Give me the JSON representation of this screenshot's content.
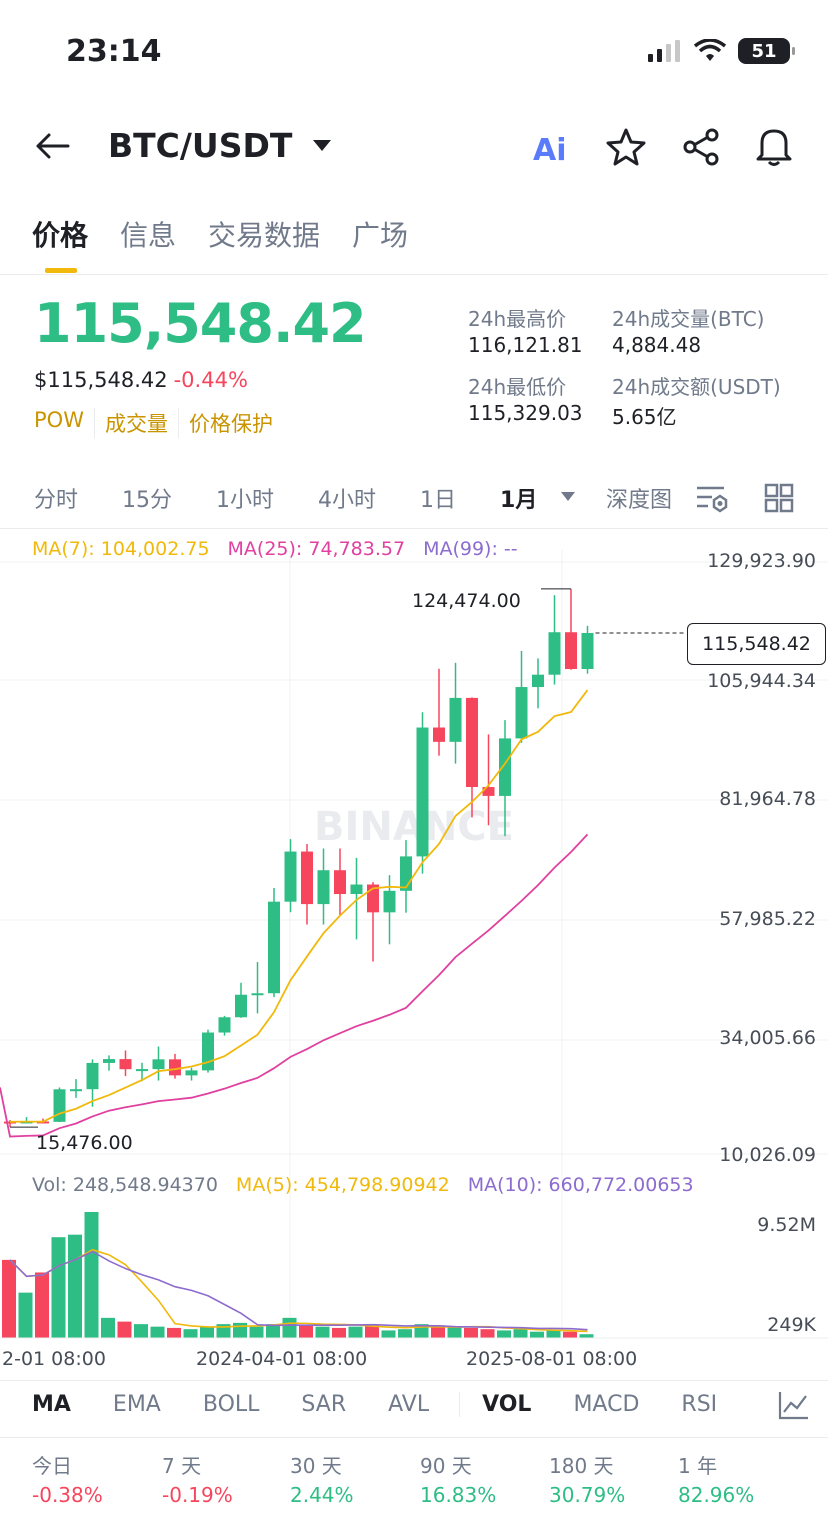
{
  "status": {
    "time": "23:14",
    "battery": "51"
  },
  "header": {
    "symbol": "BTC/USDT",
    "ai_label": "Ai"
  },
  "tabs": [
    "价格",
    "信息",
    "交易数据",
    "广场"
  ],
  "price": {
    "last": "115,548.42",
    "usd": "$115,548.42",
    "change": "-0.44%",
    "tags": [
      "POW",
      "成交量",
      "价格保护"
    ]
  },
  "stats": {
    "high_label": "24h最高价",
    "high": "116,121.81",
    "low_label": "24h最低价",
    "low": "115,329.03",
    "vol_btc_label": "24h成交量(BTC)",
    "vol_btc": "4,884.48",
    "vol_usdt_label": "24h成交额(USDT)",
    "vol_usdt": "5.65亿"
  },
  "intervals": [
    "分时",
    "15分",
    "1小时",
    "4小时",
    "1日",
    "1月",
    "深度图"
  ],
  "ma": {
    "ma7": "MA(7): 104,002.75",
    "ma25": "MA(25): 74,783.57",
    "ma99": "MA(99): --"
  },
  "y_axis": [
    "129,923.90",
    "105,944.34",
    "81,964.78",
    "57,985.22",
    "34,005.66",
    "10,026.09"
  ],
  "chart_labels": {
    "high": "124,474.00",
    "low": "15,476.00",
    "last": "115,548.42",
    "watermark": "BINANCE"
  },
  "volume": {
    "vol": "Vol: 248,548.94370",
    "ma5": "MA(5): 454,798.90942",
    "ma10": "MA(10): 660,772.00653",
    "y_top": "9.52M",
    "y_bottom": "249K"
  },
  "x_axis": [
    "2-01 08:00",
    "2024-04-01 08:00",
    "2025-08-01 08:00"
  ],
  "indicators": [
    "MA",
    "EMA",
    "BOLL",
    "SAR",
    "AVL",
    "VOL",
    "MACD",
    "RSI"
  ],
  "performance": [
    {
      "label": "今日",
      "value": "-0.38%"
    },
    {
      "label": "7 天",
      "value": "-0.19%"
    },
    {
      "label": "30 天",
      "value": "2.44%"
    },
    {
      "label": "90 天",
      "value": "16.83%"
    },
    {
      "label": "180 天",
      "value": "30.79%"
    },
    {
      "label": "1 年",
      "value": "82.96%"
    }
  ],
  "colors": {
    "up": "#2ebd85",
    "down": "#f6465d",
    "ma7": "#f0b90b",
    "ma25": "#e040a0",
    "ma99": "#8c6ccf"
  },
  "chart_data": {
    "type": "candlestick",
    "interval": "1M",
    "ohlc": [
      [
        16600,
        16900,
        15476,
        16540
      ],
      [
        16540,
        17500,
        16300,
        16620
      ],
      [
        16620,
        17200,
        16200,
        16540
      ],
      [
        16540,
        23500,
        16500,
        23130
      ],
      [
        23130,
        25200,
        21400,
        23150
      ],
      [
        23150,
        29200,
        19600,
        28470
      ],
      [
        28470,
        30000,
        26900,
        29250
      ],
      [
        29250,
        31000,
        25800,
        27200
      ],
      [
        27200,
        28500,
        24750,
        27220
      ],
      [
        27220,
        31800,
        24900,
        29200
      ],
      [
        29200,
        30300,
        25300,
        25950
      ],
      [
        25950,
        27500,
        24900,
        26960
      ],
      [
        26960,
        35200,
        26500,
        34630
      ],
      [
        34630,
        38000,
        34000,
        37720
      ],
      [
        37720,
        44700,
        37600,
        42280
      ],
      [
        42280,
        48900,
        38500,
        42580
      ],
      [
        42580,
        63900,
        41800,
        61130
      ],
      [
        61130,
        73800,
        59000,
        71280
      ],
      [
        71280,
        72800,
        56500,
        60640
      ],
      [
        60640,
        71900,
        56500,
        67500
      ],
      [
        67500,
        71900,
        58400,
        62680
      ],
      [
        62680,
        70000,
        53500,
        64600
      ],
      [
        64600,
        65100,
        49000,
        58970
      ],
      [
        58970,
        66500,
        52500,
        63330
      ],
      [
        63330,
        73600,
        58900,
        70300
      ],
      [
        70300,
        99500,
        66800,
        96400
      ],
      [
        96400,
        108300,
        90700,
        93500
      ],
      [
        93500,
        109500,
        89100,
        102400
      ],
      [
        102400,
        102500,
        78200,
        84350
      ],
      [
        84350,
        95000,
        76600,
        82550
      ],
      [
        82550,
        97900,
        74400,
        94200
      ],
      [
        94200,
        111900,
        93300,
        104600
      ],
      [
        104600,
        110400,
        100300,
        107100
      ],
      [
        107100,
        123200,
        105100,
        115700
      ],
      [
        115700,
        124474,
        108100,
        108250
      ],
      [
        108250,
        117000,
        107300,
        115548.42
      ]
    ],
    "volume_scale": [
      0.62,
      0.36,
      0.52,
      0.8,
      0.82,
      1.0,
      0.16,
      0.13,
      0.11,
      0.09,
      0.08,
      0.07,
      0.09,
      0.11,
      0.12,
      0.09,
      0.11,
      0.16,
      0.1,
      0.09,
      0.08,
      0.09,
      0.11,
      0.06,
      0.07,
      0.11,
      0.1,
      0.09,
      0.08,
      0.07,
      0.06,
      0.07,
      0.05,
      0.06,
      0.05,
      0.03
    ],
    "y_range": [
      10026.09,
      129923.9
    ],
    "ylim_labels": [
      "129,923.90",
      "10,026.09"
    ]
  }
}
